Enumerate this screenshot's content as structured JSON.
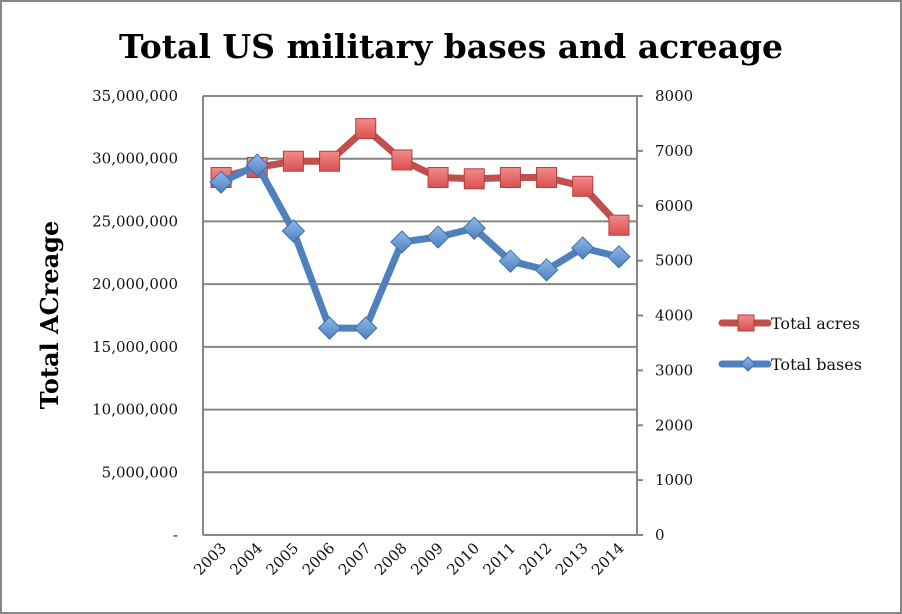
{
  "chart_data": {
    "type": "line",
    "title": "Total US military bases and acreage",
    "xlabel": "",
    "ylabel": "Total ACreage",
    "y2label": "",
    "categories": [
      "2003",
      "2004",
      "2005",
      "2006",
      "2007",
      "2008",
      "2009",
      "2010",
      "2011",
      "2012",
      "2013",
      "2014"
    ],
    "series": [
      {
        "name": "Total acres",
        "axis": "left",
        "color": "#C0504D",
        "marker": "square",
        "values": [
          28500000,
          29300000,
          29800000,
          29800000,
          32400000,
          29900000,
          28500000,
          28400000,
          28500000,
          28500000,
          27800000,
          24700000
        ]
      },
      {
        "name": "Total bases",
        "axis": "right",
        "color": "#4F81BD",
        "marker": "diamond",
        "values": [
          6430,
          6740,
          5540,
          3770,
          3770,
          5340,
          5430,
          5590,
          4990,
          4830,
          5230,
          5070
        ]
      }
    ],
    "ylim": [
      0,
      35000000
    ],
    "y2lim": [
      0,
      8000
    ],
    "yticks": [
      0,
      5000000,
      10000000,
      15000000,
      20000000,
      25000000,
      30000000,
      35000000
    ],
    "ytick_labels": [
      "-",
      "5,000,000",
      "10,000,000",
      "15,000,000",
      "20,000,000",
      "25,000,000",
      "30,000,000",
      "35,000,000"
    ],
    "y2ticks": [
      0,
      1000,
      2000,
      3000,
      4000,
      5000,
      6000,
      7000,
      8000
    ],
    "y2tick_labels": [
      "0",
      "1000",
      "2000",
      "3000",
      "4000",
      "5000",
      "6000",
      "7000",
      "8000"
    ],
    "grid": true,
    "legend": "right",
    "colors": {
      "gridline": "#868686",
      "axis": "#868686"
    }
  }
}
